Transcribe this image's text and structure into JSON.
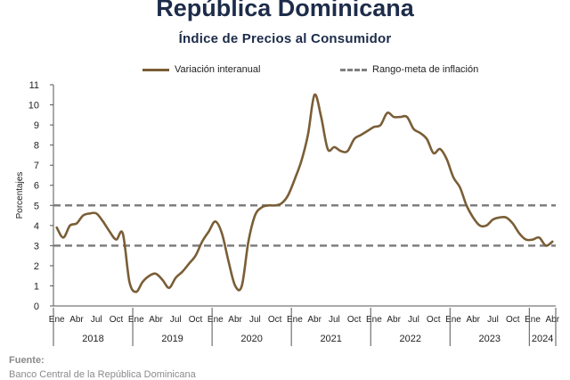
{
  "header": {
    "title": "República Dominicana",
    "subtitle": "Índice de Precios al Consumidor"
  },
  "source": {
    "label": "Fuente:",
    "text": "Banco Central de la República Dominicana"
  },
  "chart_data": {
    "type": "line",
    "ylabel": "Porcentajes",
    "ylim": [
      0,
      11
    ],
    "yticks": [
      "0",
      "1",
      "2",
      "3",
      "4",
      "5",
      "6",
      "7",
      "8",
      "9",
      "10",
      "11"
    ],
    "month_ticks": [
      "Ene",
      "Abr",
      "Jul",
      "Oct"
    ],
    "years": [
      "2018",
      "2019",
      "2020",
      "2021",
      "2022",
      "2023",
      "2024"
    ],
    "legend": {
      "series_label": "Variación interanual",
      "target_label": "Rango-meta de inflación"
    },
    "target_range": [
      3,
      5
    ],
    "series": [
      {
        "name": "Variación interanual",
        "color": "#7a5e36",
        "start": "2018-01",
        "values": [
          3.9,
          3.4,
          4.0,
          4.1,
          4.5,
          4.6,
          4.6,
          4.2,
          3.7,
          3.3,
          3.6,
          1.2,
          0.7,
          1.2,
          1.5,
          1.6,
          1.3,
          0.9,
          1.4,
          1.7,
          2.1,
          2.5,
          3.2,
          3.7,
          4.2,
          3.6,
          2.2,
          1.0,
          1.0,
          3.2,
          4.5,
          4.9,
          5.0,
          5.0,
          5.1,
          5.5,
          6.3,
          7.2,
          8.5,
          10.5,
          9.4,
          7.8,
          7.9,
          7.7,
          7.7,
          8.3,
          8.5,
          8.7,
          8.9,
          9.0,
          9.6,
          9.4,
          9.4,
          9.4,
          8.8,
          8.6,
          8.3,
          7.6,
          7.8,
          7.3,
          6.4,
          5.9,
          5.0,
          4.4,
          4.0,
          4.0,
          4.3,
          4.4,
          4.4,
          4.1,
          3.6,
          3.3,
          3.3,
          3.4,
          3.0,
          3.2
        ]
      }
    ]
  }
}
